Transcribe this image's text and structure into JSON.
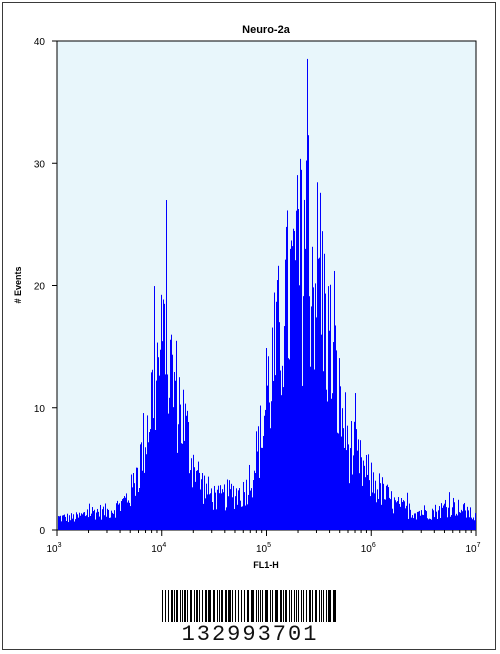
{
  "chart_data": {
    "type": "area",
    "title": "Neuro-2a",
    "xlabel": "FL1-H",
    "ylabel": "# Events",
    "x_scale": "log",
    "xlim": [
      1000,
      10000000
    ],
    "ylim": [
      0,
      40
    ],
    "y_ticks": [
      "0",
      "10",
      "20",
      "30",
      "40"
    ],
    "x_ticks": [
      {
        "base": "10",
        "exp": "3"
      },
      {
        "base": "10",
        "exp": "4"
      },
      {
        "base": "10",
        "exp": "5"
      },
      {
        "base": "10",
        "exp": "6"
      },
      {
        "base": "10",
        "exp": "7"
      }
    ],
    "series": [
      {
        "color": "#0000ff",
        "points": [
          [
            1000,
            1
          ],
          [
            1500,
            1
          ],
          [
            2200,
            1.5
          ],
          [
            3000,
            1.5
          ],
          [
            4000,
            2
          ],
          [
            5000,
            3
          ],
          [
            6000,
            5
          ],
          [
            7000,
            8
          ],
          [
            8000,
            11
          ],
          [
            9000,
            13
          ],
          [
            10000,
            14
          ],
          [
            11000,
            14
          ],
          [
            12000,
            13
          ],
          [
            14000,
            11
          ],
          [
            16000,
            9
          ],
          [
            19000,
            6
          ],
          [
            23000,
            4
          ],
          [
            28000,
            3
          ],
          [
            35000,
            2.5
          ],
          [
            45000,
            3
          ],
          [
            60000,
            3
          ],
          [
            75000,
            5
          ],
          [
            90000,
            8
          ],
          [
            100000,
            11
          ],
          [
            120000,
            14
          ],
          [
            150000,
            18
          ],
          [
            180000,
            20
          ],
          [
            210000,
            21
          ],
          [
            250000,
            22
          ],
          [
            300000,
            21
          ],
          [
            350000,
            18
          ],
          [
            420000,
            14
          ],
          [
            500000,
            10
          ],
          [
            600000,
            7
          ],
          [
            700000,
            6
          ],
          [
            800000,
            5
          ],
          [
            1000000,
            4
          ],
          [
            1300000,
            3
          ],
          [
            1700000,
            2
          ],
          [
            2500000,
            1.5
          ],
          [
            4000000,
            1.5
          ],
          [
            6000000,
            2
          ],
          [
            8000000,
            1.5
          ],
          [
            10000000,
            1
          ]
        ],
        "peaks": [
          [
            10500,
            18.5
          ],
          [
            230000,
            27
          ]
        ]
      }
    ],
    "plot_background": "#e8f6fb",
    "grid": false,
    "legend": "none"
  },
  "sample_id": "132993701"
}
